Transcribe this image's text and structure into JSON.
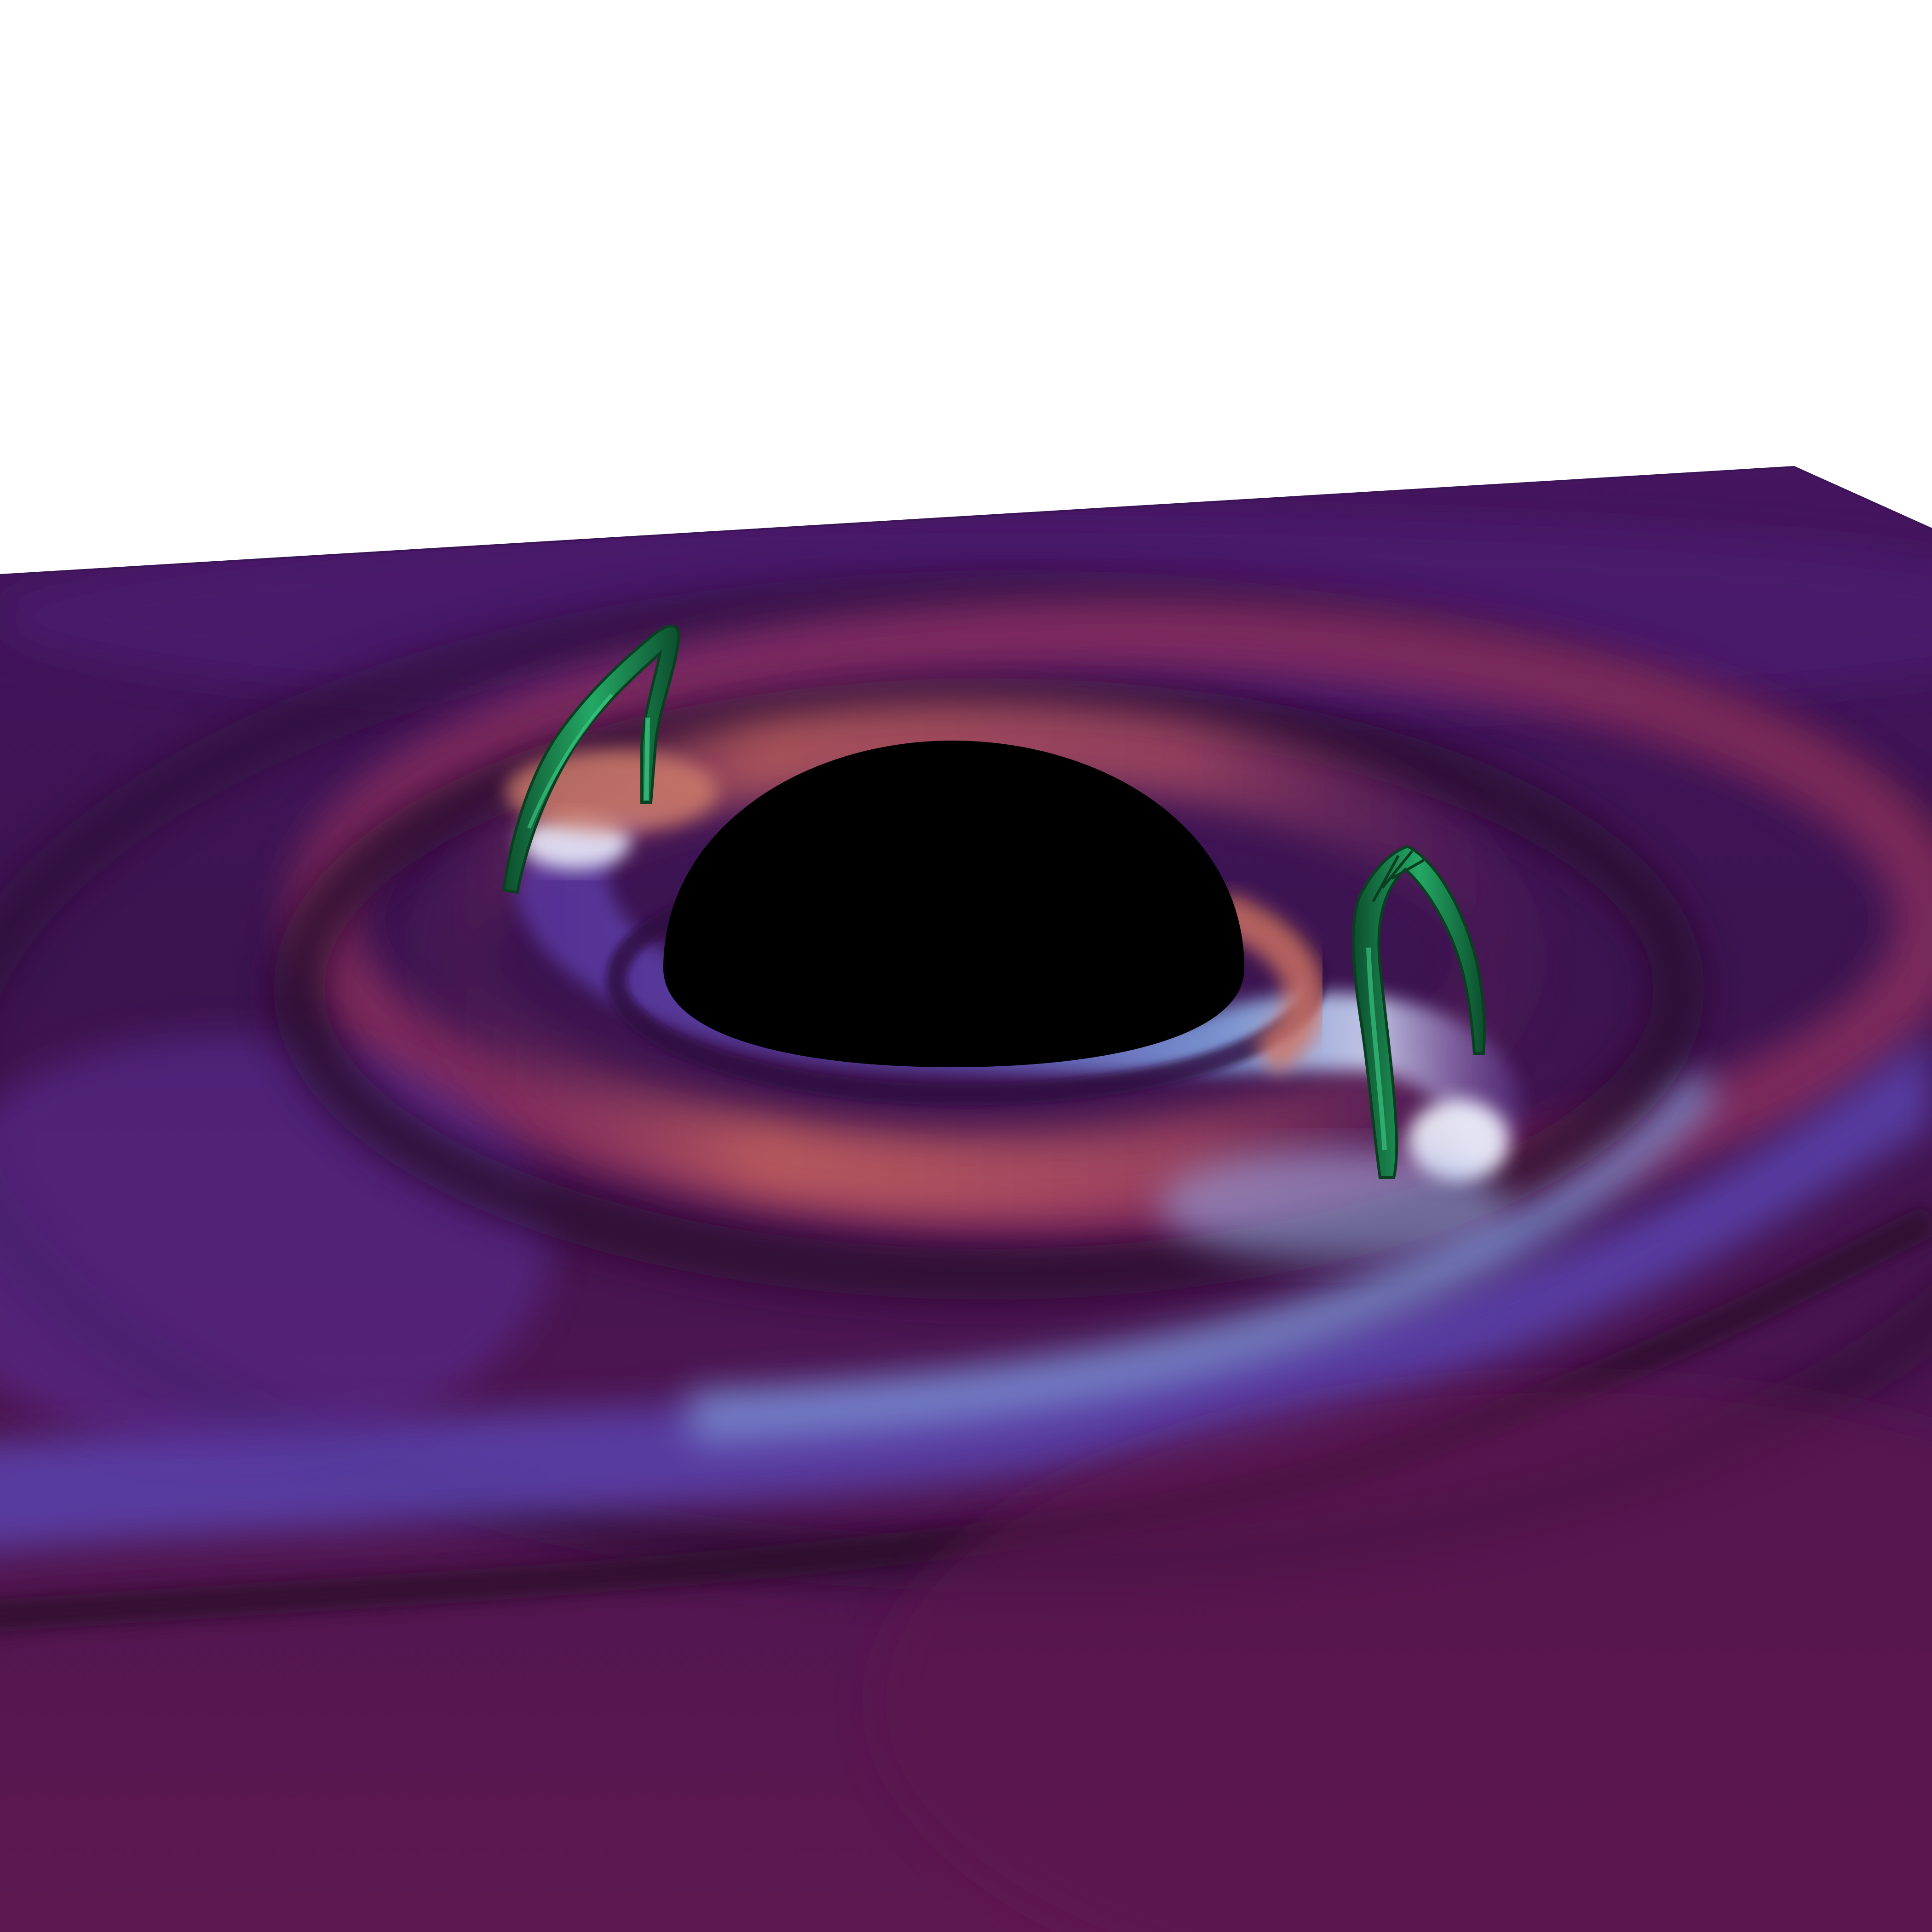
{
  "scene": {
    "description_visible_text": "",
    "colors": {
      "background": "#ffffff",
      "plane_base": "#5a1a55",
      "plane_far": "#46155f",
      "arm_bright": "#6f8fd8",
      "arm_glow": "#f0f4ff",
      "ring_warm": "#c25a5e",
      "dark_gap": "#2a0f2f",
      "sphere": "#000000",
      "tubes": "#1f9a5c",
      "tubes_dark": "#0b4a2a"
    },
    "icons": [
      "accretion-disk-plane",
      "black-hole-sphere",
      "magnetic-flux-tube-left",
      "magnetic-flux-tube-right"
    ]
  }
}
